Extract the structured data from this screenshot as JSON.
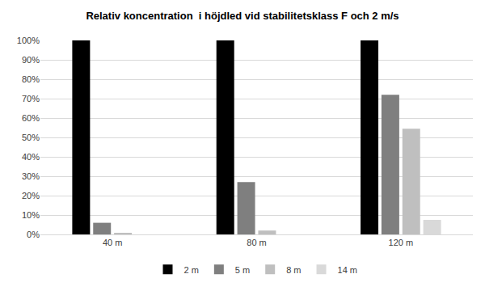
{
  "chart_data": {
    "type": "bar",
    "title": "Relativ koncentration  i höjdled vid stabilitetsklass F och 2 m/s",
    "categories": [
      "40 m",
      "80 m",
      "120 m"
    ],
    "series": [
      {
        "name": "2 m",
        "color": "#000000",
        "values": [
          100,
          100,
          100
        ]
      },
      {
        "name": "5 m",
        "color": "#7f7f7f",
        "values": [
          6,
          27,
          72
        ]
      },
      {
        "name": "8 m",
        "color": "#bfbfbf",
        "values": [
          0.5,
          2,
          54.5
        ]
      },
      {
        "name": "14 m",
        "color": "#d9d9d9",
        "values": [
          0,
          0,
          7.5
        ]
      }
    ],
    "ylim": [
      0,
      100
    ],
    "yticks": [
      {
        "value": 0,
        "label": "0%"
      },
      {
        "value": 10,
        "label": "10%"
      },
      {
        "value": 20,
        "label": "20%"
      },
      {
        "value": 30,
        "label": "30%"
      },
      {
        "value": 40,
        "label": "40%"
      },
      {
        "value": 50,
        "label": "50%"
      },
      {
        "value": 60,
        "label": "60%"
      },
      {
        "value": 70,
        "label": "70%"
      },
      {
        "value": 80,
        "label": "80%"
      },
      {
        "value": 90,
        "label": "90%"
      },
      {
        "value": 100,
        "label": "100%"
      }
    ],
    "grid": true,
    "legend": "bottom"
  }
}
